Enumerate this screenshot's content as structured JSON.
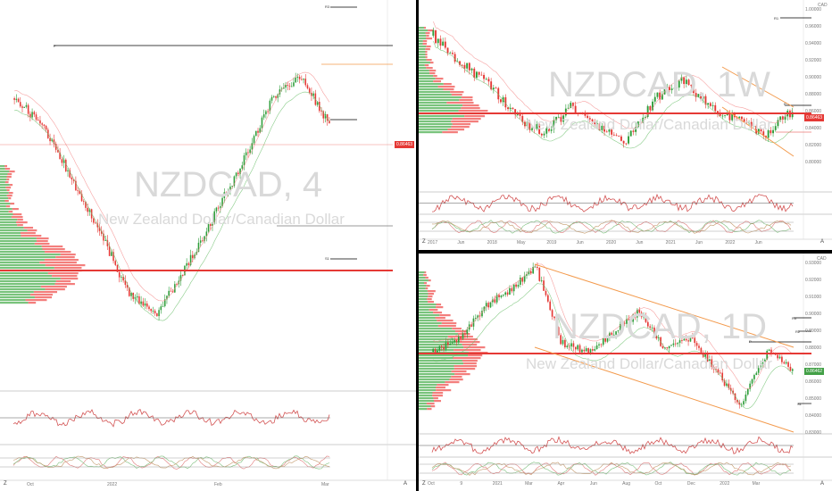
{
  "panels": {
    "left": {
      "symbol_watermark": "NZDCAD, 4",
      "description_watermark": "New Zealand Dollar/Canadian Dollar",
      "price_tag": "0.86463",
      "level_labels": [
        "R3",
        "P",
        "S1"
      ],
      "x_axis_labels": [
        "Oct",
        "2022",
        "Feb",
        "Mar"
      ],
      "corner_left": "Z",
      "corner_right": "A"
    },
    "top_right": {
      "symbol_watermark": "NZDCAD, 1W",
      "description_watermark": "New Zealand Dollar/Canadian Dollar",
      "price_tag": "0.86463",
      "currency": "CAD",
      "level_labels": [
        "R1",
        "P"
      ],
      "x_axis_labels": [
        "2017",
        "Jun",
        "2018",
        "May",
        "2019",
        "Jun",
        "2020",
        "Jun",
        "2021",
        "Jun",
        "2022",
        "Jun"
      ],
      "y_axis_labels": [
        "1.00000",
        "0.96000",
        "0.94000",
        "0.92000",
        "0.90000",
        "0.88000",
        "0.86000",
        "0.84000",
        "0.82000",
        "0.80000"
      ],
      "corner_left": "Z",
      "corner_right": "A"
    },
    "bottom_right": {
      "symbol_watermark": "NZDCAD, 1D",
      "description_watermark": "New Zealand Dollar/Canadian Dollar",
      "price_tag": "0.86462",
      "currency": "CAD",
      "level_labels": [
        "R3",
        "R2",
        "P",
        "S1"
      ],
      "x_axis_labels": [
        "Oct",
        "9",
        "2021",
        "Mar",
        "Apr",
        "Jun",
        "Aug",
        "Oct",
        "Dec",
        "2022",
        "Mar"
      ],
      "y_axis_labels": [
        "0.93000",
        "0.92000",
        "0.91000",
        "0.90000",
        "0.89000",
        "0.88000",
        "0.87000",
        "0.86000",
        "0.85000",
        "0.84000",
        "0.83000"
      ],
      "corner_left": "Z",
      "corner_right": "A"
    }
  },
  "colors": {
    "up": "#2e9e3a",
    "down": "#e53935",
    "channel": "#f39a4c",
    "pivot_line": "#000000",
    "volume_up": "#4caf50",
    "volume_down": "#ef5350"
  }
}
